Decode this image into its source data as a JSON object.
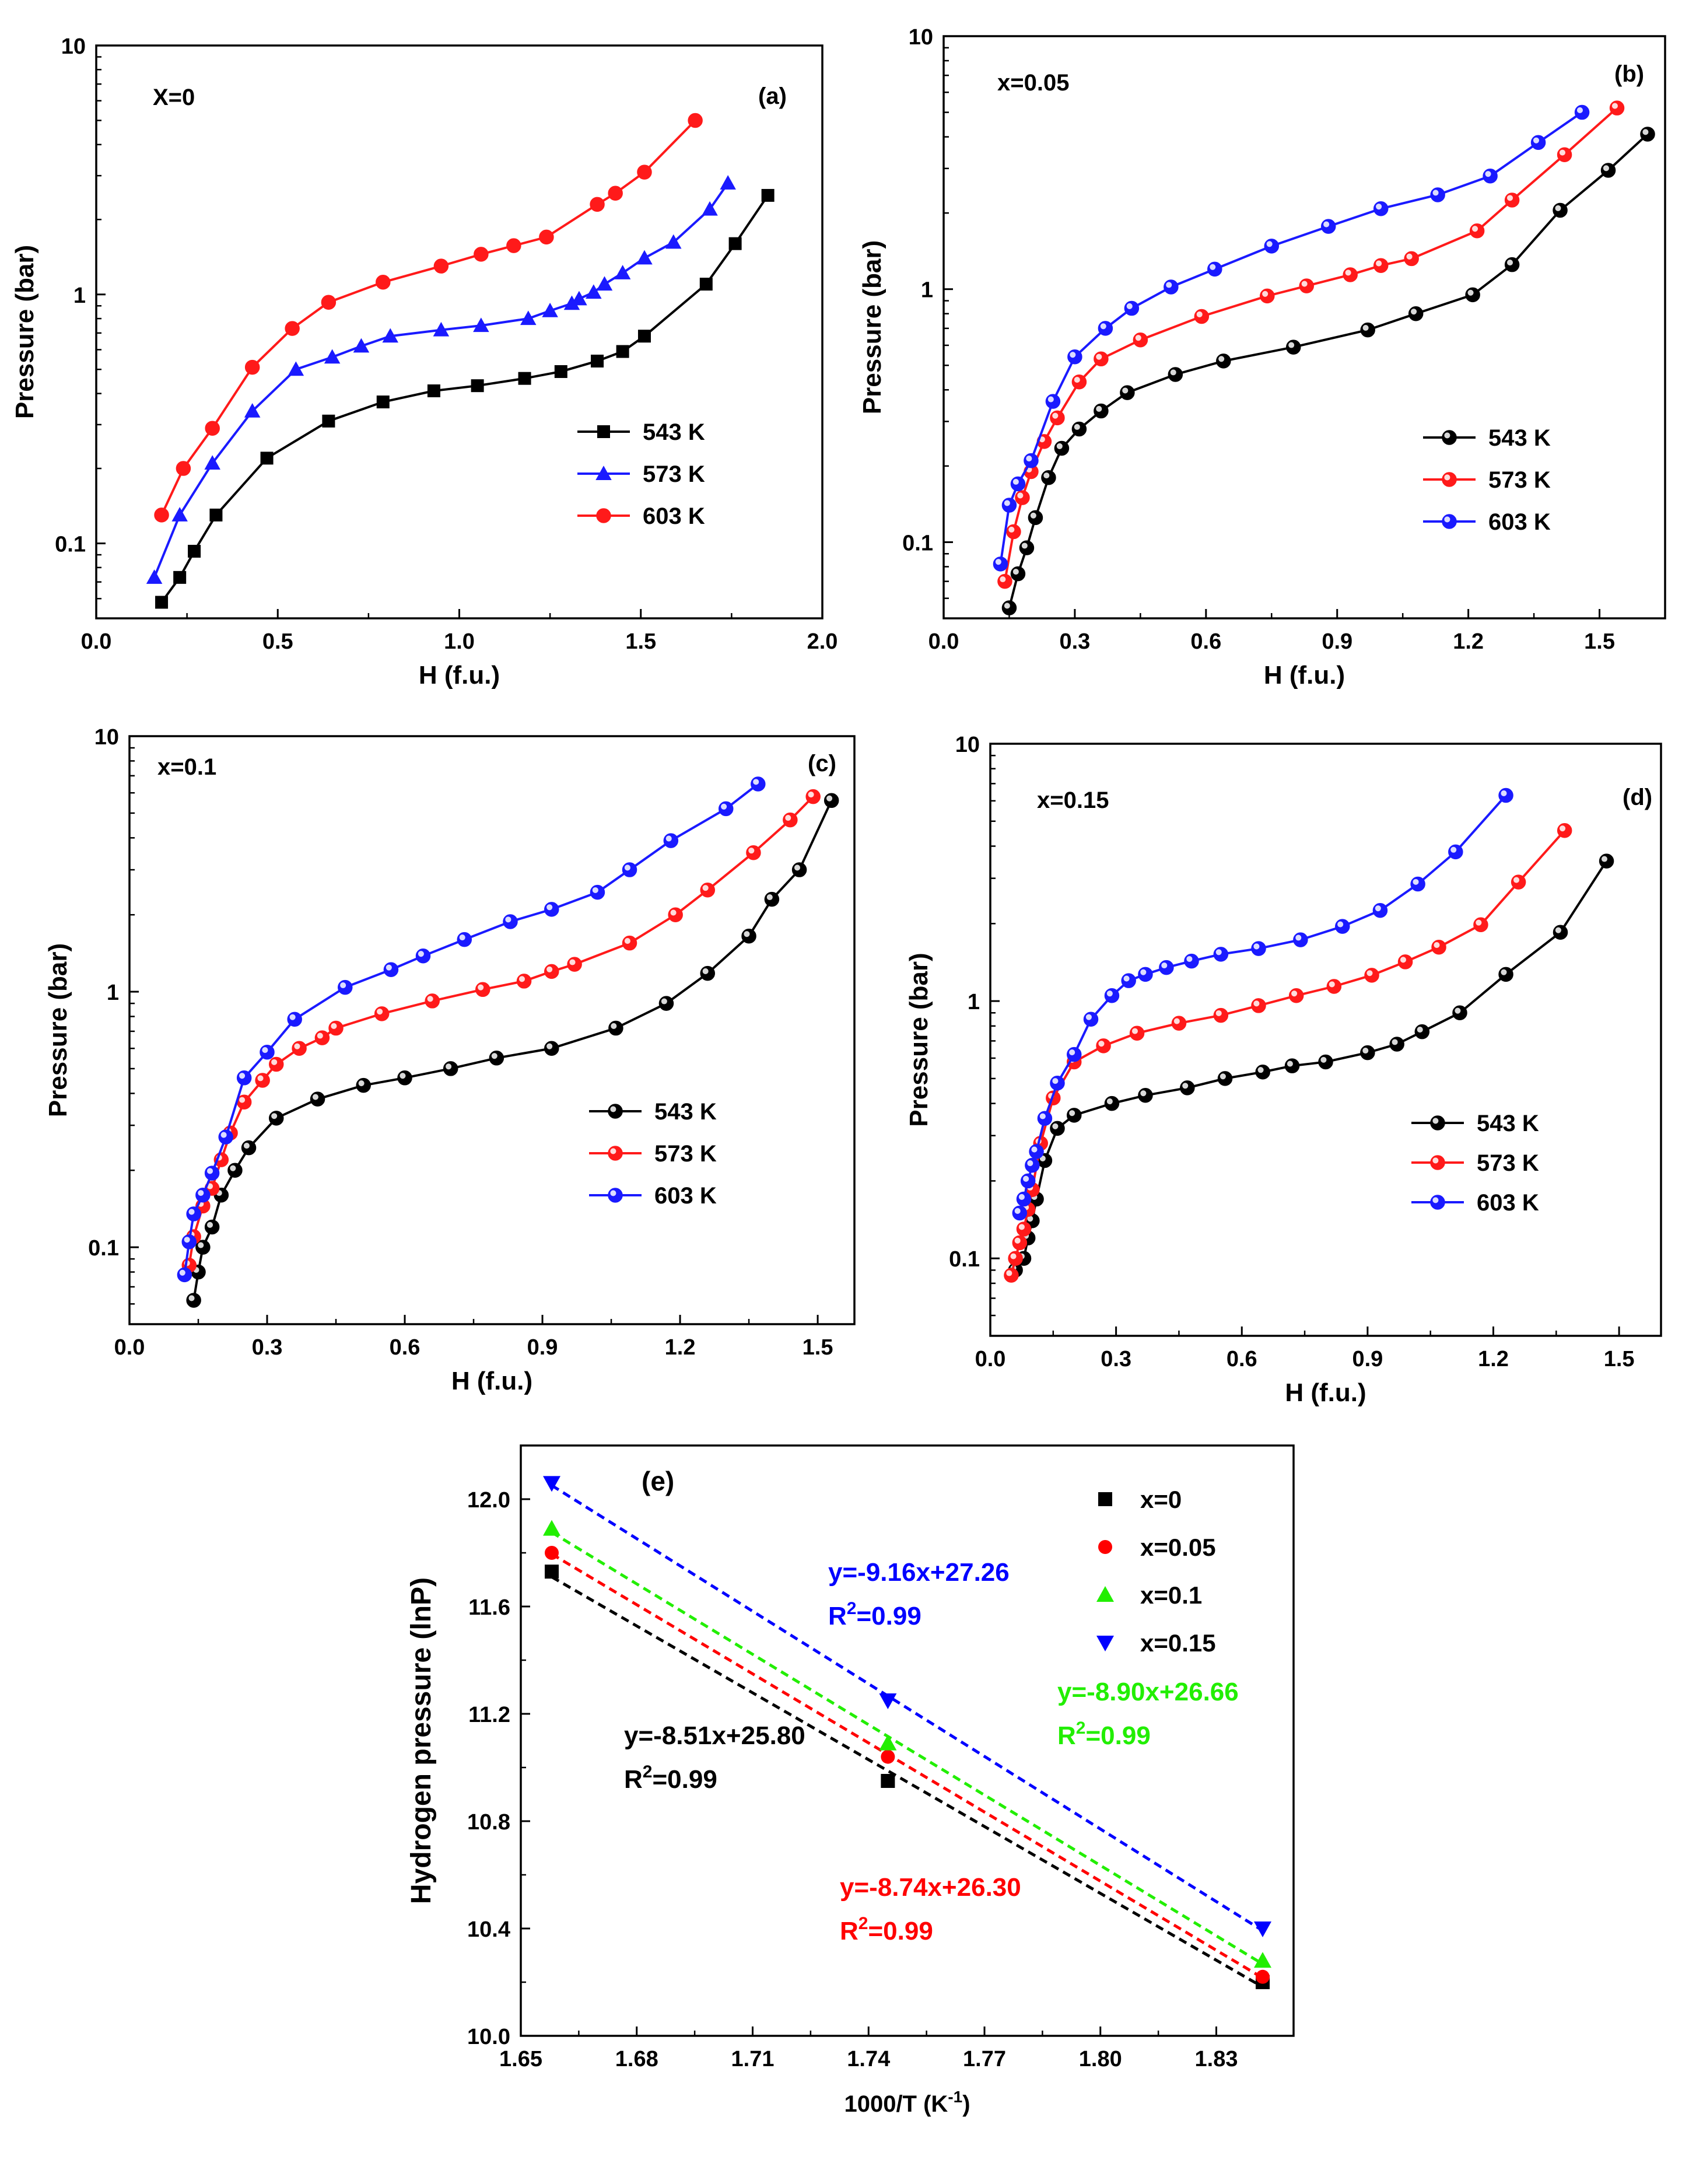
{
  "chart_data": [
    {
      "id": "a",
      "type": "line",
      "panel_label": "(a)",
      "composition_label": "X=0",
      "xlabel": "H (f.u.)",
      "ylabel": "Pressure (bar)",
      "xlim": [
        0.0,
        2.0
      ],
      "xticks": [
        0.0,
        0.5,
        1.0,
        1.5,
        2.0
      ],
      "xtick_labels": [
        "0.0",
        "0.5",
        "1.0",
        "1.5",
        "2.0"
      ],
      "yscale": "log",
      "ylim": [
        0.05,
        10
      ],
      "yticks": [
        0.1,
        1,
        10
      ],
      "ytick_labels": [
        "0.1",
        "1",
        "10"
      ],
      "legend_position": "lower-right",
      "series": [
        {
          "name": "543 K",
          "color": "#000000",
          "marker": "square",
          "x": [
            0.18,
            0.23,
            0.27,
            0.33,
            0.47,
            0.64,
            0.79,
            0.93,
            1.05,
            1.18,
            1.28,
            1.38,
            1.45,
            1.51,
            1.68,
            1.76,
            1.85
          ],
          "y": [
            0.058,
            0.073,
            0.093,
            0.13,
            0.22,
            0.31,
            0.37,
            0.41,
            0.43,
            0.46,
            0.49,
            0.54,
            0.59,
            0.68,
            1.1,
            1.6,
            2.5
          ]
        },
        {
          "name": "573 K",
          "color": "#1a1aff",
          "marker": "triangle",
          "x": [
            0.16,
            0.23,
            0.32,
            0.43,
            0.55,
            0.65,
            0.73,
            0.81,
            0.95,
            1.06,
            1.19,
            1.25,
            1.31,
            1.33,
            1.37,
            1.4,
            1.45,
            1.51,
            1.59,
            1.69,
            1.74
          ],
          "y": [
            0.073,
            0.13,
            0.21,
            0.34,
            0.5,
            0.56,
            0.62,
            0.68,
            0.72,
            0.75,
            0.8,
            0.86,
            0.92,
            0.96,
            1.02,
            1.1,
            1.22,
            1.4,
            1.62,
            2.2,
            2.8
          ]
        },
        {
          "name": "603 K",
          "color": "#ff1a1a",
          "marker": "circle",
          "x": [
            0.18,
            0.24,
            0.32,
            0.43,
            0.54,
            0.64,
            0.79,
            0.95,
            1.06,
            1.15,
            1.24,
            1.38,
            1.43,
            1.51,
            1.65
          ],
          "y": [
            0.13,
            0.2,
            0.29,
            0.51,
            0.73,
            0.93,
            1.12,
            1.3,
            1.45,
            1.57,
            1.7,
            2.3,
            2.55,
            3.1,
            5.0
          ]
        }
      ]
    },
    {
      "id": "b",
      "type": "line",
      "panel_label": "(b)",
      "composition_label": "x=0.05",
      "xlabel": "H (f.u.)",
      "ylabel": "Pressure (bar)",
      "xlim": [
        0.0,
        1.65
      ],
      "xticks": [
        0.0,
        0.3,
        0.6,
        0.9,
        1.2,
        1.5
      ],
      "xtick_labels": [
        "0.0",
        "0.3",
        "0.6",
        "0.9",
        "1.2",
        "1.5"
      ],
      "yscale": "log",
      "ylim": [
        0.05,
        10
      ],
      "yticks": [
        0.1,
        1,
        10
      ],
      "ytick_labels": [
        "0.1",
        "1",
        "10"
      ],
      "legend_position": "lower-right",
      "series": [
        {
          "name": "543 K",
          "color": "#000000",
          "marker": "circle",
          "x": [
            0.15,
            0.17,
            0.19,
            0.21,
            0.24,
            0.27,
            0.31,
            0.36,
            0.42,
            0.53,
            0.64,
            0.8,
            0.97,
            1.08,
            1.21,
            1.3,
            1.41,
            1.52,
            1.61
          ],
          "y": [
            0.055,
            0.075,
            0.095,
            0.125,
            0.18,
            0.235,
            0.28,
            0.33,
            0.39,
            0.46,
            0.52,
            0.59,
            0.69,
            0.8,
            0.95,
            1.25,
            2.05,
            2.95,
            4.1
          ]
        },
        {
          "name": "573 K",
          "color": "#ff1a1a",
          "marker": "circle",
          "x": [
            0.14,
            0.16,
            0.18,
            0.2,
            0.23,
            0.26,
            0.31,
            0.36,
            0.45,
            0.59,
            0.74,
            0.83,
            0.93,
            1.0,
            1.07,
            1.22,
            1.3,
            1.42,
            1.54
          ],
          "y": [
            0.07,
            0.11,
            0.15,
            0.19,
            0.25,
            0.31,
            0.43,
            0.53,
            0.63,
            0.78,
            0.94,
            1.03,
            1.14,
            1.24,
            1.32,
            1.7,
            2.25,
            3.4,
            5.2
          ]
        },
        {
          "name": "603 K",
          "color": "#1a1aff",
          "marker": "circle",
          "x": [
            0.13,
            0.15,
            0.17,
            0.2,
            0.25,
            0.3,
            0.37,
            0.43,
            0.52,
            0.62,
            0.75,
            0.88,
            1.0,
            1.13,
            1.25,
            1.36,
            1.46
          ],
          "y": [
            0.082,
            0.14,
            0.17,
            0.21,
            0.36,
            0.54,
            0.7,
            0.84,
            1.02,
            1.2,
            1.48,
            1.77,
            2.08,
            2.36,
            2.8,
            3.8,
            5.0
          ]
        }
      ]
    },
    {
      "id": "c",
      "type": "line",
      "panel_label": "(c)",
      "composition_label": "x=0.1",
      "xlabel": "H (f.u.)",
      "ylabel": "Pressure (bar)",
      "xlim": [
        0.0,
        1.58
      ],
      "xticks": [
        0.0,
        0.3,
        0.6,
        0.9,
        1.2,
        1.5
      ],
      "xtick_labels": [
        "0.0",
        "0.3",
        "0.6",
        "0.9",
        "1.2",
        "1.5"
      ],
      "yscale": "log",
      "ylim": [
        0.05,
        10
      ],
      "yticks": [
        0.1,
        1,
        10
      ],
      "ytick_labels": [
        "0.1",
        "1",
        "10"
      ],
      "legend_position": "lower-right",
      "series": [
        {
          "name": "543 K",
          "color": "#000000",
          "marker": "circle",
          "x": [
            0.14,
            0.15,
            0.16,
            0.18,
            0.2,
            0.23,
            0.26,
            0.32,
            0.41,
            0.51,
            0.6,
            0.7,
            0.8,
            0.92,
            1.06,
            1.17,
            1.26,
            1.35,
            1.4,
            1.46,
            1.53
          ],
          "y": [
            0.062,
            0.08,
            0.1,
            0.12,
            0.16,
            0.2,
            0.245,
            0.32,
            0.38,
            0.43,
            0.46,
            0.5,
            0.55,
            0.6,
            0.72,
            0.9,
            1.18,
            1.65,
            2.3,
            3.0,
            5.6
          ]
        },
        {
          "name": "573 K",
          "color": "#ff1a1a",
          "marker": "circle",
          "x": [
            0.13,
            0.14,
            0.16,
            0.18,
            0.2,
            0.22,
            0.25,
            0.29,
            0.32,
            0.37,
            0.42,
            0.45,
            0.55,
            0.66,
            0.77,
            0.86,
            0.92,
            0.97,
            1.09,
            1.19,
            1.26,
            1.36,
            1.44,
            1.49
          ],
          "y": [
            0.085,
            0.11,
            0.145,
            0.17,
            0.22,
            0.28,
            0.37,
            0.45,
            0.52,
            0.6,
            0.66,
            0.72,
            0.82,
            0.92,
            1.02,
            1.1,
            1.2,
            1.28,
            1.55,
            2.0,
            2.5,
            3.5,
            4.7,
            5.8
          ]
        },
        {
          "name": "603 K",
          "color": "#1a1aff",
          "marker": "circle",
          "x": [
            0.12,
            0.13,
            0.14,
            0.16,
            0.18,
            0.21,
            0.25,
            0.3,
            0.36,
            0.47,
            0.57,
            0.64,
            0.73,
            0.83,
            0.92,
            1.02,
            1.09,
            1.18,
            1.3,
            1.37
          ],
          "y": [
            0.078,
            0.105,
            0.135,
            0.16,
            0.195,
            0.27,
            0.46,
            0.58,
            0.78,
            1.04,
            1.22,
            1.38,
            1.6,
            1.88,
            2.1,
            2.45,
            3.0,
            3.9,
            5.2,
            6.5
          ]
        }
      ]
    },
    {
      "id": "d",
      "type": "line",
      "panel_label": "(d)",
      "composition_label": "x=0.15",
      "xlabel": "H (f.u.)",
      "ylabel": "Pressure (bar)",
      "xlim": [
        0.0,
        1.6
      ],
      "xticks": [
        0.0,
        0.3,
        0.6,
        0.9,
        1.2,
        1.5
      ],
      "xtick_labels": [
        "0.0",
        "0.3",
        "0.6",
        "0.9",
        "1.2",
        "1.5"
      ],
      "yscale": "log",
      "ylim": [
        0.05,
        10
      ],
      "yticks": [
        0.1,
        1,
        10
      ],
      "ytick_labels": [
        "0.1",
        "1",
        "10"
      ],
      "legend_position": "lower-right",
      "series": [
        {
          "name": "543 K",
          "color": "#000000",
          "marker": "circle",
          "x": [
            0.06,
            0.08,
            0.09,
            0.1,
            0.11,
            0.13,
            0.16,
            0.2,
            0.29,
            0.37,
            0.47,
            0.56,
            0.65,
            0.72,
            0.8,
            0.9,
            0.97,
            1.03,
            1.12,
            1.23,
            1.36,
            1.47
          ],
          "y": [
            0.09,
            0.1,
            0.12,
            0.14,
            0.17,
            0.24,
            0.32,
            0.36,
            0.4,
            0.43,
            0.46,
            0.5,
            0.53,
            0.56,
            0.58,
            0.63,
            0.68,
            0.76,
            0.9,
            1.27,
            1.85,
            3.5
          ]
        },
        {
          "name": "573 K",
          "color": "#ff1a1a",
          "marker": "circle",
          "x": [
            0.05,
            0.06,
            0.07,
            0.08,
            0.09,
            0.1,
            0.12,
            0.15,
            0.2,
            0.27,
            0.35,
            0.45,
            0.55,
            0.64,
            0.73,
            0.82,
            0.91,
            0.99,
            1.07,
            1.17,
            1.26,
            1.37
          ],
          "y": [
            0.086,
            0.1,
            0.115,
            0.13,
            0.155,
            0.185,
            0.28,
            0.42,
            0.58,
            0.67,
            0.75,
            0.82,
            0.88,
            0.96,
            1.05,
            1.14,
            1.26,
            1.42,
            1.62,
            1.98,
            2.9,
            4.6
          ]
        },
        {
          "name": "603 K",
          "color": "#1a1aff",
          "marker": "circle",
          "x": [
            0.07,
            0.08,
            0.09,
            0.1,
            0.11,
            0.13,
            0.16,
            0.2,
            0.24,
            0.29,
            0.33,
            0.37,
            0.42,
            0.48,
            0.55,
            0.64,
            0.74,
            0.84,
            0.93,
            1.02,
            1.11,
            1.23
          ],
          "y": [
            0.15,
            0.17,
            0.2,
            0.23,
            0.26,
            0.35,
            0.48,
            0.62,
            0.85,
            1.05,
            1.2,
            1.27,
            1.35,
            1.43,
            1.52,
            1.6,
            1.73,
            1.95,
            2.25,
            2.85,
            3.8,
            6.3
          ]
        }
      ]
    },
    {
      "id": "e",
      "type": "scatter",
      "panel_label": "(e)",
      "xlabel": "1000/T (K",
      "xlabel_sup": "-1",
      "xlabel_close": ")",
      "ylabel": "Hydrogen pressure (lnP)",
      "xlim": [
        1.65,
        1.85
      ],
      "xticks": [
        1.65,
        1.68,
        1.71,
        1.74,
        1.77,
        1.8,
        1.83
      ],
      "xtick_labels": [
        "1.65",
        "1.68",
        "1.71",
        "1.74",
        "1.77",
        "1.80",
        "1.83"
      ],
      "ylim": [
        10.0,
        12.2
      ],
      "yticks": [
        10.0,
        10.4,
        10.8,
        11.2,
        11.6,
        12.0
      ],
      "ytick_labels": [
        "10.0",
        "10.4",
        "10.8",
        "11.2",
        "11.6",
        "12.0"
      ],
      "legend_position": "top-right",
      "series": [
        {
          "name": "x=0",
          "color": "#000000",
          "marker": "square",
          "x": [
            1.658,
            1.745,
            1.842
          ],
          "y": [
            11.73,
            10.95,
            10.2
          ]
        },
        {
          "name": "x=0.05",
          "color": "#ff0000",
          "marker": "circle",
          "x": [
            1.658,
            1.745,
            1.842
          ],
          "y": [
            11.8,
            11.04,
            10.22
          ]
        },
        {
          "name": "x=0.1",
          "color": "#22ee00",
          "marker": "triangle",
          "x": [
            1.658,
            1.745,
            1.842
          ],
          "y": [
            11.89,
            11.09,
            10.28
          ]
        },
        {
          "name": "x=0.15",
          "color": "#0000ff",
          "marker": "triangle-down",
          "x": [
            1.658,
            1.745,
            1.842
          ],
          "y": [
            12.06,
            11.25,
            10.4
          ]
        }
      ],
      "annotations": [
        {
          "series": "x=0.15",
          "equation": "y=-9.16x+27.26",
          "r2_text": "R",
          "r2_sup": "2",
          "r2_value": "=0.99"
        },
        {
          "series": "x=0.1",
          "equation": "y=-8.90x+26.66",
          "r2_text": "R",
          "r2_sup": "2",
          "r2_value": "=0.99"
        },
        {
          "series": "x=0",
          "equation": "y=-8.51x+25.80",
          "r2_text": "R",
          "r2_sup": "2",
          "r2_value": "=0.99"
        },
        {
          "series": "x=0.05",
          "equation": "y=-8.74x+26.30",
          "r2_text": "R",
          "r2_sup": "2",
          "r2_value": "=0.99"
        }
      ]
    }
  ]
}
